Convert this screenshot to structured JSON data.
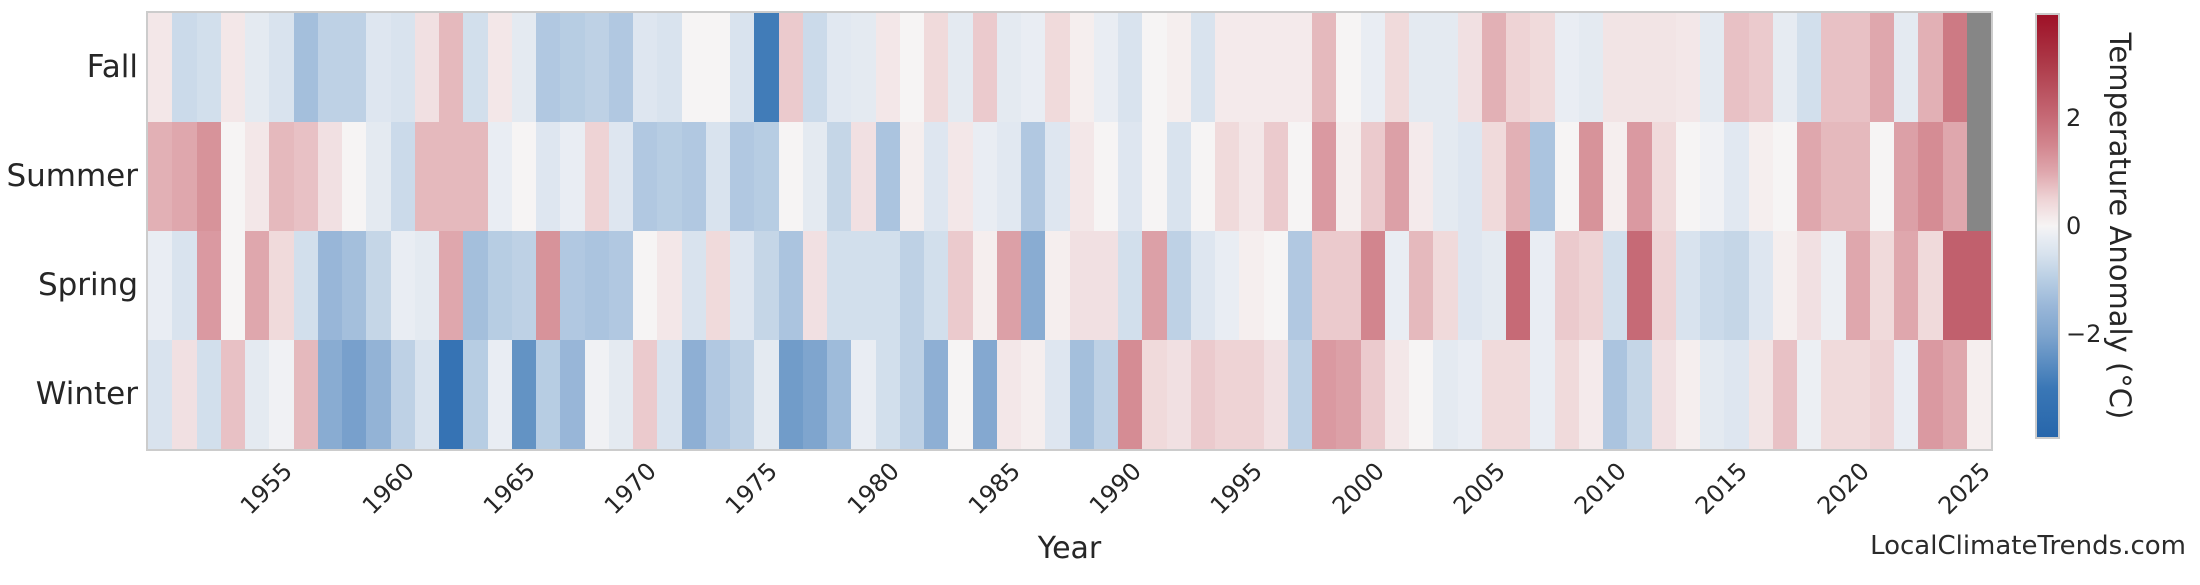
{
  "watermark": "LocalClimateTrends.com",
  "chart_data": {
    "type": "heatmap",
    "title": "",
    "xlabel": "Year",
    "ylabel": "",
    "rows": [
      "Fall",
      "Summer",
      "Spring",
      "Winter"
    ],
    "year_start": 1950,
    "year_end": 2025,
    "x_ticks": [
      "1955",
      "1960",
      "1965",
      "1970",
      "1975",
      "1980",
      "1985",
      "1990",
      "1995",
      "2000",
      "2005",
      "2010",
      "2015",
      "2020",
      "2025"
    ],
    "colorbar": {
      "label": "Temperature Anomaly (°C)",
      "ticks": [
        2,
        0,
        -2
      ],
      "tick_labels": [
        "2",
        "0",
        "−2"
      ],
      "vmin": -3.9,
      "vmax": 3.9,
      "nan_color": "#868686"
    },
    "palette_anchors": [
      [
        -3.9,
        "#2766ab"
      ],
      [
        -3.0,
        "#3a77b6"
      ],
      [
        -2.0,
        "#7fa5ce"
      ],
      [
        -1.5,
        "#98b6d8"
      ],
      [
        -1.0,
        "#b7cde3"
      ],
      [
        -0.5,
        "#d9e3ee"
      ],
      [
        -0.2,
        "#e9edf3"
      ],
      [
        0.0,
        "#f6f4f4"
      ],
      [
        0.2,
        "#f3e7e8"
      ],
      [
        0.5,
        "#eed3d5"
      ],
      [
        1.0,
        "#dfa7ad"
      ],
      [
        1.5,
        "#d2858e"
      ],
      [
        2.0,
        "#c66a76"
      ],
      [
        3.0,
        "#ad3a49"
      ],
      [
        3.9,
        "#9e1127"
      ]
    ],
    "series": [
      {
        "name": "Fall",
        "values": [
          0.2,
          -0.7,
          -0.6,
          0.2,
          -0.3,
          -0.5,
          -1.3,
          -0.9,
          -0.9,
          -0.4,
          -0.5,
          0.3,
          0.8,
          -0.6,
          0.2,
          -0.3,
          -1.1,
          -1.0,
          -0.9,
          -1.1,
          -0.4,
          -0.5,
          0.0,
          0.0,
          -0.5,
          -2.9,
          0.6,
          -0.7,
          -0.35,
          -0.3,
          0.2,
          0.0,
          0.4,
          -0.3,
          0.6,
          -0.3,
          -0.2,
          0.4,
          0.1,
          -0.2,
          -0.5,
          0.0,
          0.1,
          -0.5,
          0.15,
          0.15,
          0.15,
          0.15,
          0.8,
          0.0,
          -0.2,
          0.4,
          -0.3,
          -0.3,
          0.3,
          0.9,
          0.5,
          0.4,
          -0.2,
          -0.3,
          0.25,
          0.25,
          0.25,
          0.2,
          -0.3,
          0.7,
          0.6,
          -0.25,
          -0.6,
          0.7,
          0.7,
          1.0,
          -0.3,
          0.9,
          1.7,
          null
        ]
      },
      {
        "name": "Summer",
        "values": [
          0.9,
          1.0,
          1.3,
          0.0,
          0.2,
          0.8,
          0.7,
          0.3,
          0.0,
          -0.3,
          -0.7,
          0.8,
          0.8,
          0.8,
          -0.2,
          0.0,
          -0.4,
          -0.2,
          0.5,
          -0.4,
          -1.1,
          -1.0,
          -1.1,
          -0.5,
          -1.1,
          -1.0,
          0.0,
          -0.3,
          -0.8,
          0.3,
          -1.2,
          0.1,
          -0.4,
          0.2,
          -0.2,
          -0.35,
          -1.1,
          -0.4,
          0.2,
          0.0,
          -0.4,
          0.0,
          -0.5,
          0.0,
          0.4,
          0.2,
          0.6,
          0.0,
          1.2,
          0.1,
          0.6,
          1.1,
          0.15,
          -0.3,
          -0.4,
          0.4,
          0.9,
          -1.2,
          0.0,
          1.3,
          0.1,
          1.2,
          0.4,
          0.0,
          -0.1,
          -0.35,
          0.1,
          0.0,
          1.0,
          0.8,
          0.8,
          0.0,
          1.1,
          1.4,
          1.0,
          null
        ]
      },
      {
        "name": "Spring",
        "values": [
          -0.2,
          -0.5,
          1.2,
          0.0,
          1.0,
          0.4,
          -0.6,
          -1.5,
          -1.3,
          -0.8,
          -0.2,
          -0.3,
          1.0,
          -1.3,
          -1.0,
          -0.9,
          1.3,
          -1.1,
          -1.2,
          -1.1,
          0.0,
          0.2,
          -0.5,
          0.4,
          -0.4,
          -0.8,
          -1.2,
          0.3,
          -0.6,
          -0.6,
          -0.6,
          -0.9,
          -0.6,
          0.6,
          0.1,
          1.1,
          -1.8,
          0.1,
          0.3,
          0.3,
          -0.6,
          1.1,
          -0.9,
          -0.4,
          -0.2,
          0.1,
          0.0,
          -1.1,
          0.6,
          0.6,
          1.5,
          -0.2,
          0.8,
          0.4,
          -0.4,
          -0.3,
          2.0,
          -0.2,
          0.6,
          0.5,
          -0.6,
          2.0,
          0.5,
          -0.5,
          -0.7,
          -0.8,
          -0.4,
          0.1,
          0.3,
          -0.15,
          1.0,
          0.4,
          1.0,
          0.4,
          2.2,
          2.2
        ]
      },
      {
        "name": "Winter",
        "values": [
          -0.5,
          0.3,
          -0.6,
          0.7,
          -0.3,
          -0.1,
          0.8,
          -1.8,
          -2.1,
          -1.6,
          -0.9,
          -0.5,
          -3.2,
          -1.0,
          -0.2,
          -2.4,
          -1.0,
          -1.5,
          -0.1,
          -0.3,
          0.6,
          -0.5,
          -1.7,
          -1.1,
          -0.9,
          -0.3,
          -2.2,
          -2.0,
          -1.4,
          -0.2,
          -0.6,
          -0.9,
          -1.7,
          0.0,
          -1.9,
          0.2,
          0.1,
          -0.4,
          -1.3,
          -0.9,
          1.4,
          0.4,
          0.3,
          0.6,
          0.5,
          0.5,
          0.3,
          -0.9,
          1.2,
          1.1,
          0.6,
          0.2,
          0.0,
          -0.3,
          -0.2,
          0.4,
          0.4,
          -0.2,
          0.4,
          0.15,
          -1.2,
          -0.8,
          0.3,
          0.1,
          -0.3,
          -0.4,
          0.25,
          0.7,
          -0.15,
          0.4,
          0.4,
          0.5,
          -0.2,
          1.2,
          1.0,
          0.1
        ]
      }
    ]
  }
}
